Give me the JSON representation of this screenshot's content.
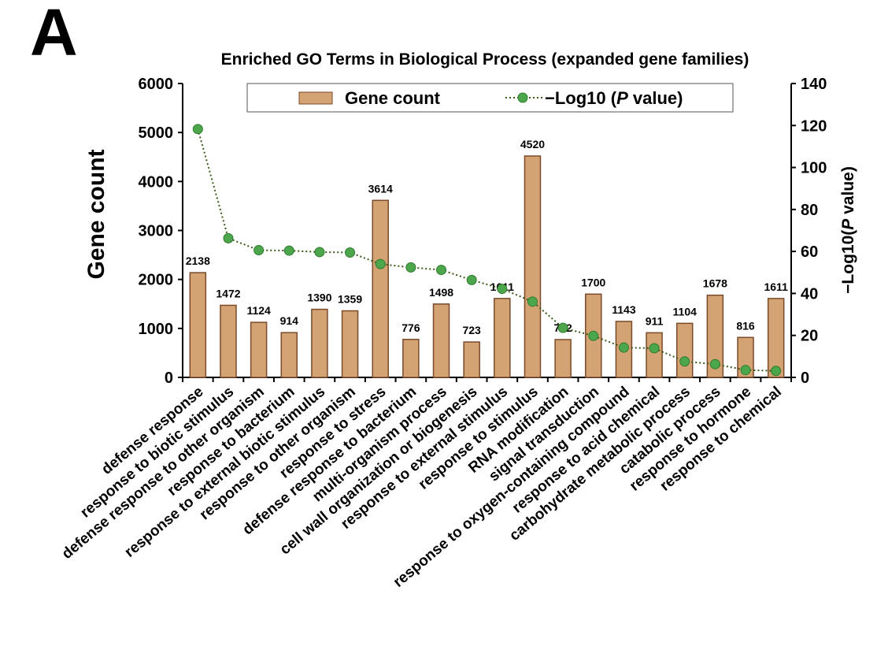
{
  "panel_letter": "A",
  "chart_data": {
    "type": "bar",
    "title": "Enriched GO Terms in Biological Process (expanded gene families)",
    "ylabel": "Gene count",
    "y2label_pre": "−Log10(",
    "y2label_p": "P",
    "y2label_post": " value)",
    "ylim": [
      0,
      6000
    ],
    "y2lim": [
      0,
      140
    ],
    "yticks": [
      0,
      1000,
      2000,
      3000,
      4000,
      5000,
      6000
    ],
    "y2ticks": [
      0,
      20,
      40,
      60,
      80,
      100,
      120,
      140
    ],
    "legend": {
      "placement": "top-center",
      "bar_label": "Gene count",
      "line_label_pre": "−Log10 (",
      "line_label_p": "P",
      "line_label_post": " value)"
    },
    "categories": [
      "defense response",
      "response to biotic stimulus",
      "defense response to other organism",
      "response to bacterium",
      "response to external biotic stimulus",
      "response to other organism",
      "response to stress",
      "defense response to bacterium",
      "multi-organism process",
      "cell wall organization or biogenesis",
      "response to external stimulus",
      "response to stimulus",
      "RNA modification",
      "signal transduction",
      "response to oxygen-containing compound",
      "response to acid chemical",
      "carbohydrate metabolic process",
      "catabolic process",
      "response to hormone",
      "response to chemical"
    ],
    "series": [
      {
        "name": "Gene count",
        "type": "bar",
        "axis": "left",
        "color": "#D4A373",
        "values": [
          2138,
          1472,
          1124,
          914,
          1390,
          1359,
          3614,
          776,
          1498,
          723,
          1611,
          4520,
          772,
          1700,
          1143,
          911,
          1104,
          1678,
          816,
          1611
        ]
      },
      {
        "name": "−Log10 (P value)",
        "type": "line",
        "axis": "right",
        "color": "#4CA64C",
        "line_color": "#3a5a1a",
        "values": [
          118.3,
          66.3,
          60.6,
          60.4,
          59.7,
          59.5,
          54.0,
          52.4,
          51.2,
          46.4,
          42.2,
          36.1,
          23.6,
          19.8,
          14.2,
          13.9,
          7.6,
          6.3,
          3.5,
          3.1
        ]
      }
    ]
  }
}
